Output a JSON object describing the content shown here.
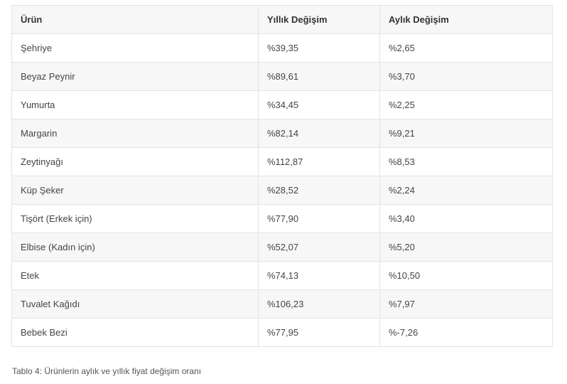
{
  "table": {
    "headers": [
      "Ürün",
      "Yıllık Değişim",
      "Aylık Değişim"
    ],
    "rows": [
      [
        "Şehriye",
        "%39,35",
        "%2,65"
      ],
      [
        "Beyaz Peynir",
        "%89,61",
        "%3,70"
      ],
      [
        "Yumurta",
        "%34,45",
        "%2,25"
      ],
      [
        "Margarin",
        "%82,14",
        "%9,21"
      ],
      [
        "Zeytinyağı",
        "%112,87",
        "%8,53"
      ],
      [
        "Küp Şeker",
        "%28,52",
        "%2,24"
      ],
      [
        "Tişört (Erkek için)",
        "%77,90",
        "%3,40"
      ],
      [
        "Elbise (Kadın için)",
        "%52,07",
        "%5,20"
      ],
      [
        "Etek",
        "%74,13",
        "%10,50"
      ],
      [
        "Tuvalet Kağıdı",
        "%106,23",
        "%7,97"
      ],
      [
        "Bebek Bezi",
        "%77,95",
        "%-7,26"
      ]
    ]
  },
  "caption": "Tablo 4: Ürünlerin aylık ve yıllık fiyat değişim oranı"
}
